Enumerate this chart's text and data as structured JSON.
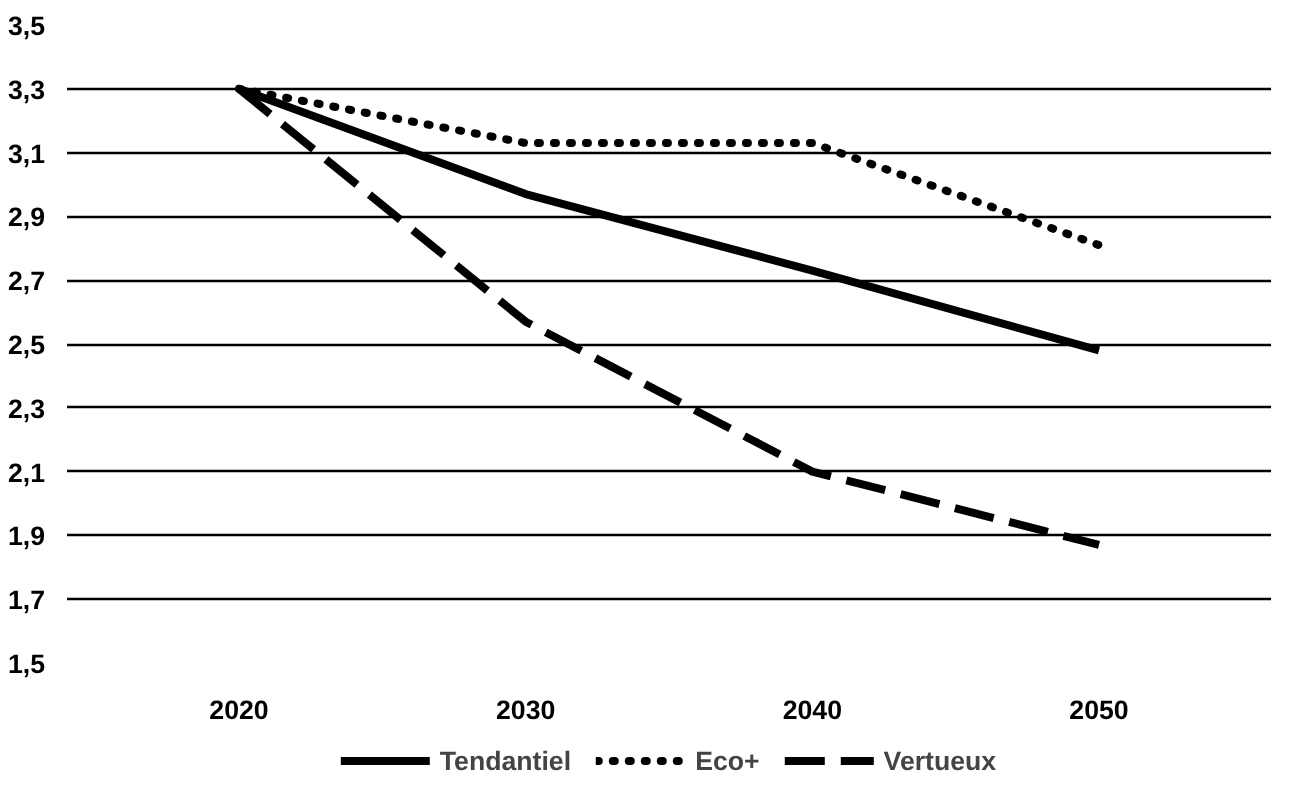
{
  "chart_data": {
    "type": "line",
    "categories": [
      "2020",
      "2030",
      "2040",
      "2050"
    ],
    "series": [
      {
        "name": "Tendantiel",
        "color": "#000000",
        "line_style": "solid",
        "values": [
          3.3,
          2.97,
          2.73,
          2.48
        ]
      },
      {
        "name": "Eco+",
        "color": "#000000",
        "line_style": "dotted",
        "values": [
          3.3,
          3.13,
          3.13,
          2.81
        ]
      },
      {
        "name": "Vertueux",
        "color": "#000000",
        "line_style": "dashed",
        "values": [
          3.3,
          2.57,
          2.1,
          1.87
        ]
      }
    ],
    "ylim": [
      1.5,
      3.5
    ],
    "yticks": [
      {
        "value": 1.5,
        "label": "1,5"
      },
      {
        "value": 1.7,
        "label": "1,7"
      },
      {
        "value": 1.9,
        "label": "1,9"
      },
      {
        "value": 2.1,
        "label": "2,1"
      },
      {
        "value": 2.3,
        "label": "2,3"
      },
      {
        "value": 2.5,
        "label": "2,5"
      },
      {
        "value": 2.7,
        "label": "2,7"
      },
      {
        "value": 2.9,
        "label": "2,9"
      },
      {
        "value": 3.1,
        "label": "3,1"
      },
      {
        "value": 3.3,
        "label": "3,3"
      },
      {
        "value": 3.5,
        "label": "3,5"
      }
    ],
    "grid": "y",
    "legend": "bottom"
  }
}
